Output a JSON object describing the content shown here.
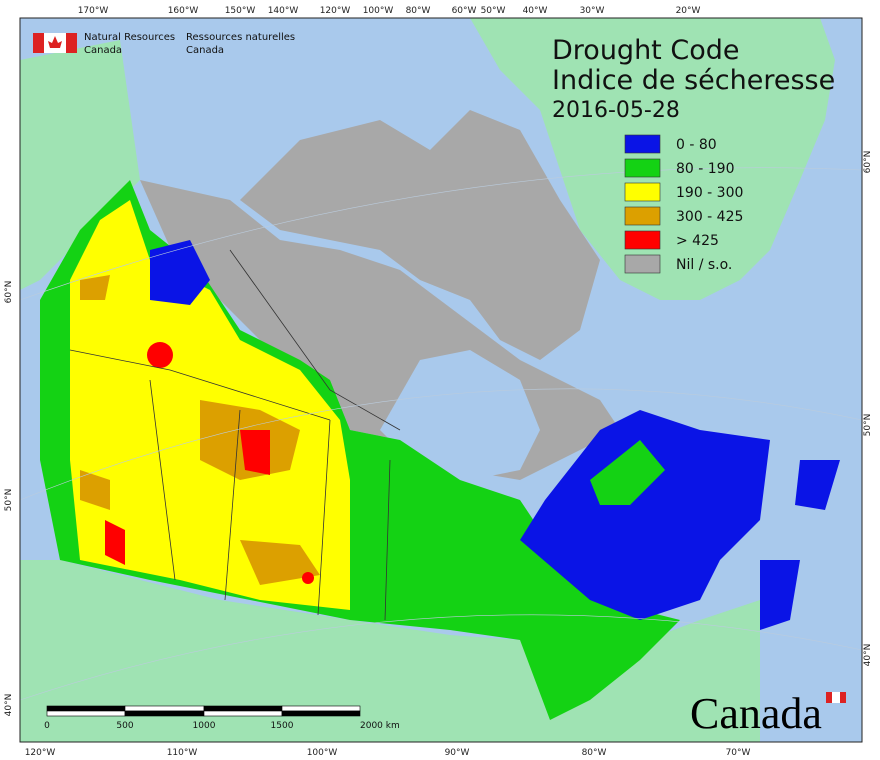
{
  "header": {
    "agency_en": [
      "Natural Resources",
      "Canada"
    ],
    "agency_fr": [
      "Ressources naturelles",
      "Canada"
    ]
  },
  "title": [
    "Drought Code",
    "Indice de sécheresse"
  ],
  "date": "2016-05-28",
  "legend": [
    {
      "label": "0 - 80",
      "color": "#0a14e6"
    },
    {
      "label": "80 - 190",
      "color": "#14d214"
    },
    {
      "label": "190 - 300",
      "color": "#ffff00"
    },
    {
      "label": "300 - 425",
      "color": "#dca000"
    },
    {
      "label": "> 425",
      "color": "#ff0000"
    },
    {
      "label": "Nil / s.o.",
      "color": "#a8a8a8"
    }
  ],
  "graticule": {
    "top": [
      "170°W",
      "160°W",
      "150°W",
      "140°W",
      "120°W",
      "100°W",
      "80°W",
      "60°W",
      "50°W",
      "40°W",
      "30°W",
      "20°W"
    ],
    "bottom": [
      "120°W",
      "110°W",
      "100°W",
      "90°W",
      "80°W",
      "70°W"
    ],
    "left": [
      "60°N",
      "50°N",
      "40°N"
    ],
    "right": [
      "60°N",
      "50°N",
      "40°N"
    ]
  },
  "scale_bar": [
    "0",
    "500",
    "1000",
    "1500",
    "2000 km"
  ],
  "wordmark": "Canada"
}
